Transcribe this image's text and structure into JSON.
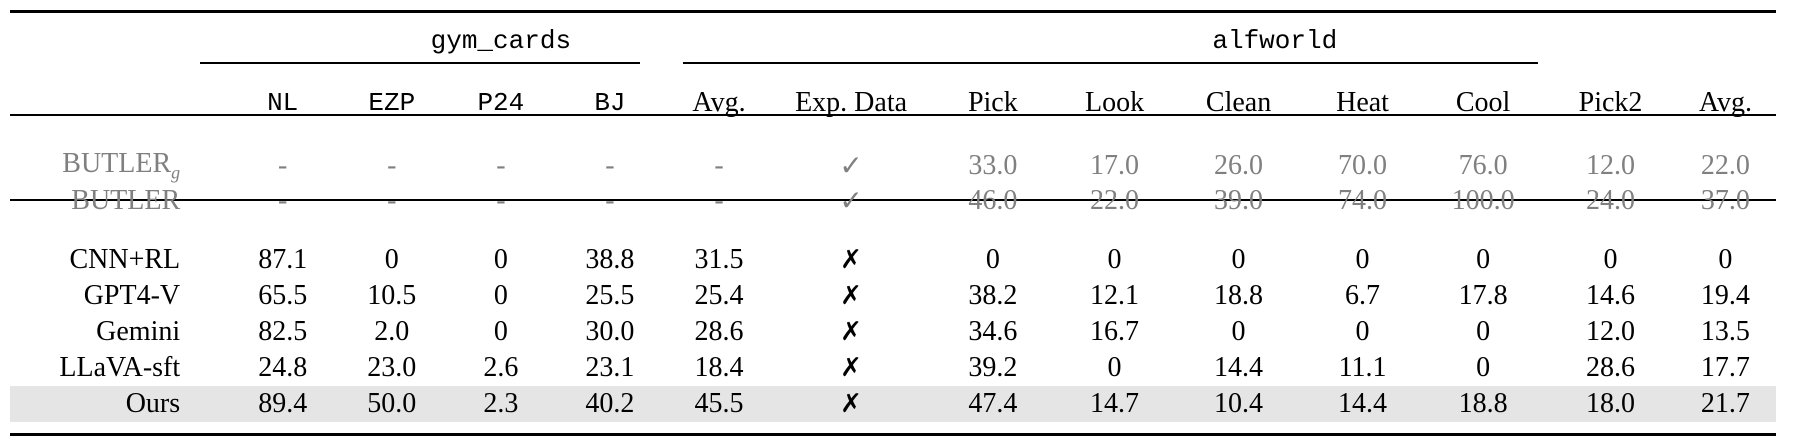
{
  "groups": {
    "gym_cards": "gym_cards",
    "alfworld": "alfworld"
  },
  "columns": {
    "gym": [
      "NL",
      "EZP",
      "P24",
      "BJ",
      "Avg."
    ],
    "exp": "Exp. Data",
    "alf": [
      "Pick",
      "Look",
      "Clean",
      "Heat",
      "Cool",
      "Pick2",
      "Avg."
    ]
  },
  "symbols": {
    "check": "✓",
    "cross": "✗"
  },
  "reference_rows": [
    {
      "method": "BUTLER",
      "method_sub": "g",
      "gym": [
        "-",
        "-",
        "-",
        "-",
        "-"
      ],
      "exp": "✓",
      "alf": [
        "33.0",
        "17.0",
        "26.0",
        "70.0",
        "76.0",
        "12.0",
        "22.0"
      ]
    },
    {
      "method": "BUTLER",
      "method_sub": "",
      "gym": [
        "-",
        "-",
        "-",
        "-",
        "-"
      ],
      "exp": "✓",
      "alf": [
        "46.0",
        "22.0",
        "39.0",
        "74.0",
        "100.0",
        "24.0",
        "37.0"
      ]
    }
  ],
  "rows": [
    {
      "method": "CNN+RL",
      "gym": [
        "87.1",
        "0",
        "0",
        "38.8",
        "31.5"
      ],
      "exp": "✗",
      "alf": [
        "0",
        "0",
        "0",
        "0",
        "0",
        "0",
        "0"
      ]
    },
    {
      "method": "GPT4-V",
      "gym": [
        "65.5",
        "10.5",
        "0",
        "25.5",
        "25.4"
      ],
      "exp": "✗",
      "alf": [
        "38.2",
        "12.1",
        "18.8",
        "6.7",
        "17.8",
        "14.6",
        "19.4"
      ]
    },
    {
      "method": "Gemini",
      "gym": [
        "82.5",
        "2.0",
        "0",
        "30.0",
        "28.6"
      ],
      "exp": "✗",
      "alf": [
        "34.6",
        "16.7",
        "0",
        "0",
        "0",
        "12.0",
        "13.5"
      ]
    },
    {
      "method": "LLaVA-sft",
      "gym": [
        "24.8",
        "23.0",
        "2.6",
        "23.1",
        "18.4"
      ],
      "exp": "✗",
      "alf": [
        "39.2",
        "0",
        "14.4",
        "11.1",
        "0",
        "28.6",
        "17.7"
      ]
    },
    {
      "method": "Ours",
      "gym": [
        "89.4",
        "50.0",
        "2.3",
        "40.2",
        "45.5"
      ],
      "exp": "✗",
      "alf": [
        "47.4",
        "14.7",
        "10.4",
        "14.4",
        "18.8",
        "18.0",
        "21.7"
      ]
    }
  ]
}
